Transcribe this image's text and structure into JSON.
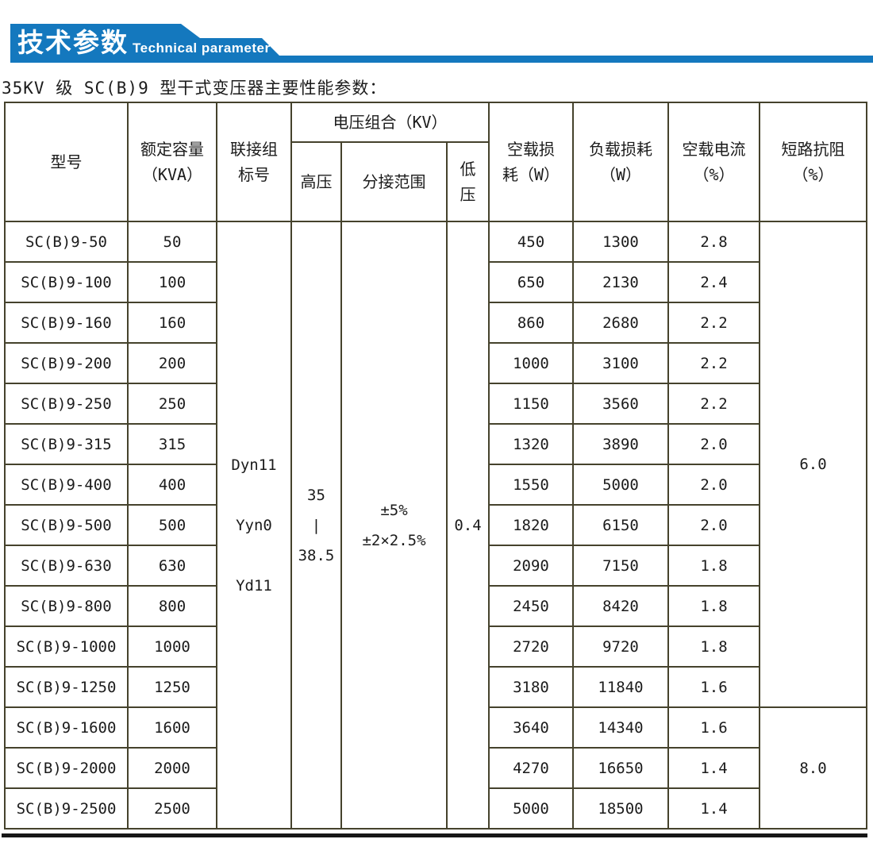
{
  "colors": {
    "banner_blue": "#1478be",
    "table_border": "#45422c"
  },
  "banner": {
    "title": "技术参数",
    "subtitle": "Technical parameter"
  },
  "page": {
    "heading": "35KV 级 SC(B)9 型干式变压器主要性能参数："
  },
  "table": {
    "headers": {
      "model": "型号",
      "capacity": "额定容量\n（KVA）",
      "connection": "联接组\n标号",
      "voltage_group": "电压组合（KV）",
      "hv": "高压",
      "tap_range": "分接范围",
      "lv": "低\n压",
      "no_load_loss": "空载损\n耗（W）",
      "load_loss": "负载损耗\n（W）",
      "no_load_current": "空载电流\n（%）",
      "impedance": "短路抗阻\n（%）"
    },
    "merged": {
      "connection": "Dyn11\n\nYyn0\n\nYd11",
      "hv": "35\n|\n38.5",
      "tap_range": "±5%\n±2×2.5%",
      "lv": "0.4",
      "impedance_groups": [
        {
          "value": "6.0",
          "rows": 12
        },
        {
          "value": "8.0",
          "rows": 3
        }
      ]
    },
    "rows": [
      {
        "model": "SC(B)9-50",
        "capacity": "50",
        "no_load_loss": "450",
        "load_loss": "1300",
        "no_load_current": "2.8"
      },
      {
        "model": "SC(B)9-100",
        "capacity": "100",
        "no_load_loss": "650",
        "load_loss": "2130",
        "no_load_current": "2.4"
      },
      {
        "model": "SC(B)9-160",
        "capacity": "160",
        "no_load_loss": "860",
        "load_loss": "2680",
        "no_load_current": "2.2"
      },
      {
        "model": "SC(B)9-200",
        "capacity": "200",
        "no_load_loss": "1000",
        "load_loss": "3100",
        "no_load_current": "2.2"
      },
      {
        "model": "SC(B)9-250",
        "capacity": "250",
        "no_load_loss": "1150",
        "load_loss": "3560",
        "no_load_current": "2.2"
      },
      {
        "model": "SC(B)9-315",
        "capacity": "315",
        "no_load_loss": "1320",
        "load_loss": "3890",
        "no_load_current": "2.0"
      },
      {
        "model": "SC(B)9-400",
        "capacity": "400",
        "no_load_loss": "1550",
        "load_loss": "5000",
        "no_load_current": "2.0"
      },
      {
        "model": "SC(B)9-500",
        "capacity": "500",
        "no_load_loss": "1820",
        "load_loss": "6150",
        "no_load_current": "2.0"
      },
      {
        "model": "SC(B)9-630",
        "capacity": "630",
        "no_load_loss": "2090",
        "load_loss": "7150",
        "no_load_current": "1.8"
      },
      {
        "model": "SC(B)9-800",
        "capacity": "800",
        "no_load_loss": "2450",
        "load_loss": "8420",
        "no_load_current": "1.8"
      },
      {
        "model": "SC(B)9-1000",
        "capacity": "1000",
        "no_load_loss": "2720",
        "load_loss": "9720",
        "no_load_current": "1.8"
      },
      {
        "model": "SC(B)9-1250",
        "capacity": "1250",
        "no_load_loss": "3180",
        "load_loss": "11840",
        "no_load_current": "1.6"
      },
      {
        "model": "SC(B)9-1600",
        "capacity": "1600",
        "no_load_loss": "3640",
        "load_loss": "14340",
        "no_load_current": "1.6"
      },
      {
        "model": "SC(B)9-2000",
        "capacity": "2000",
        "no_load_loss": "4270",
        "load_loss": "16650",
        "no_load_current": "1.4"
      },
      {
        "model": "SC(B)9-2500",
        "capacity": "2500",
        "no_load_loss": "5000",
        "load_loss": "18500",
        "no_load_current": "1.4"
      }
    ]
  }
}
